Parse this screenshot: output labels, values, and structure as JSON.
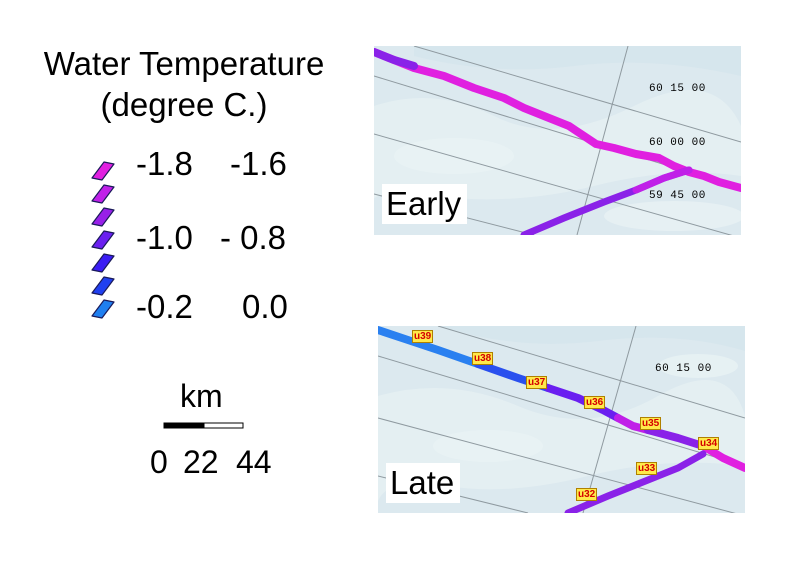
{
  "legend": {
    "title_line1": "Water Temperature",
    "title_line2": "(degree C.)",
    "rows": [
      {
        "left": "-1.8",
        "right": "-1.6"
      },
      {
        "left": "-1.0",
        "right": "- 0.8"
      },
      {
        "left": "-0.2",
        "right": "0.0"
      }
    ],
    "swatch_colors": [
      "#e020e0",
      "#c020e8",
      "#9820e8",
      "#6a1ff0",
      "#3a1cf4",
      "#2040f0",
      "#1f7ff0"
    ]
  },
  "scalebar": {
    "unit": "km",
    "ticks": [
      "0",
      "22",
      "44"
    ]
  },
  "panels": {
    "early": {
      "label": "Early",
      "coords": [
        "60 15 00",
        "60 00 00",
        "59 45 00"
      ]
    },
    "late": {
      "label": "Late",
      "coords": [
        "60 15 00"
      ],
      "stations": [
        "u39",
        "u38",
        "u37",
        "u36",
        "u35",
        "u34",
        "u33",
        "u32"
      ]
    }
  },
  "colors": {
    "track_magenta": "#e020e0",
    "track_purple": "#8a22e8",
    "track_blue": "#2a50ee",
    "track_light_blue": "#2a80f0",
    "ocean": "#dce9ef",
    "station_label_bg": "#ffe94a",
    "station_label_text": "#d40000"
  }
}
